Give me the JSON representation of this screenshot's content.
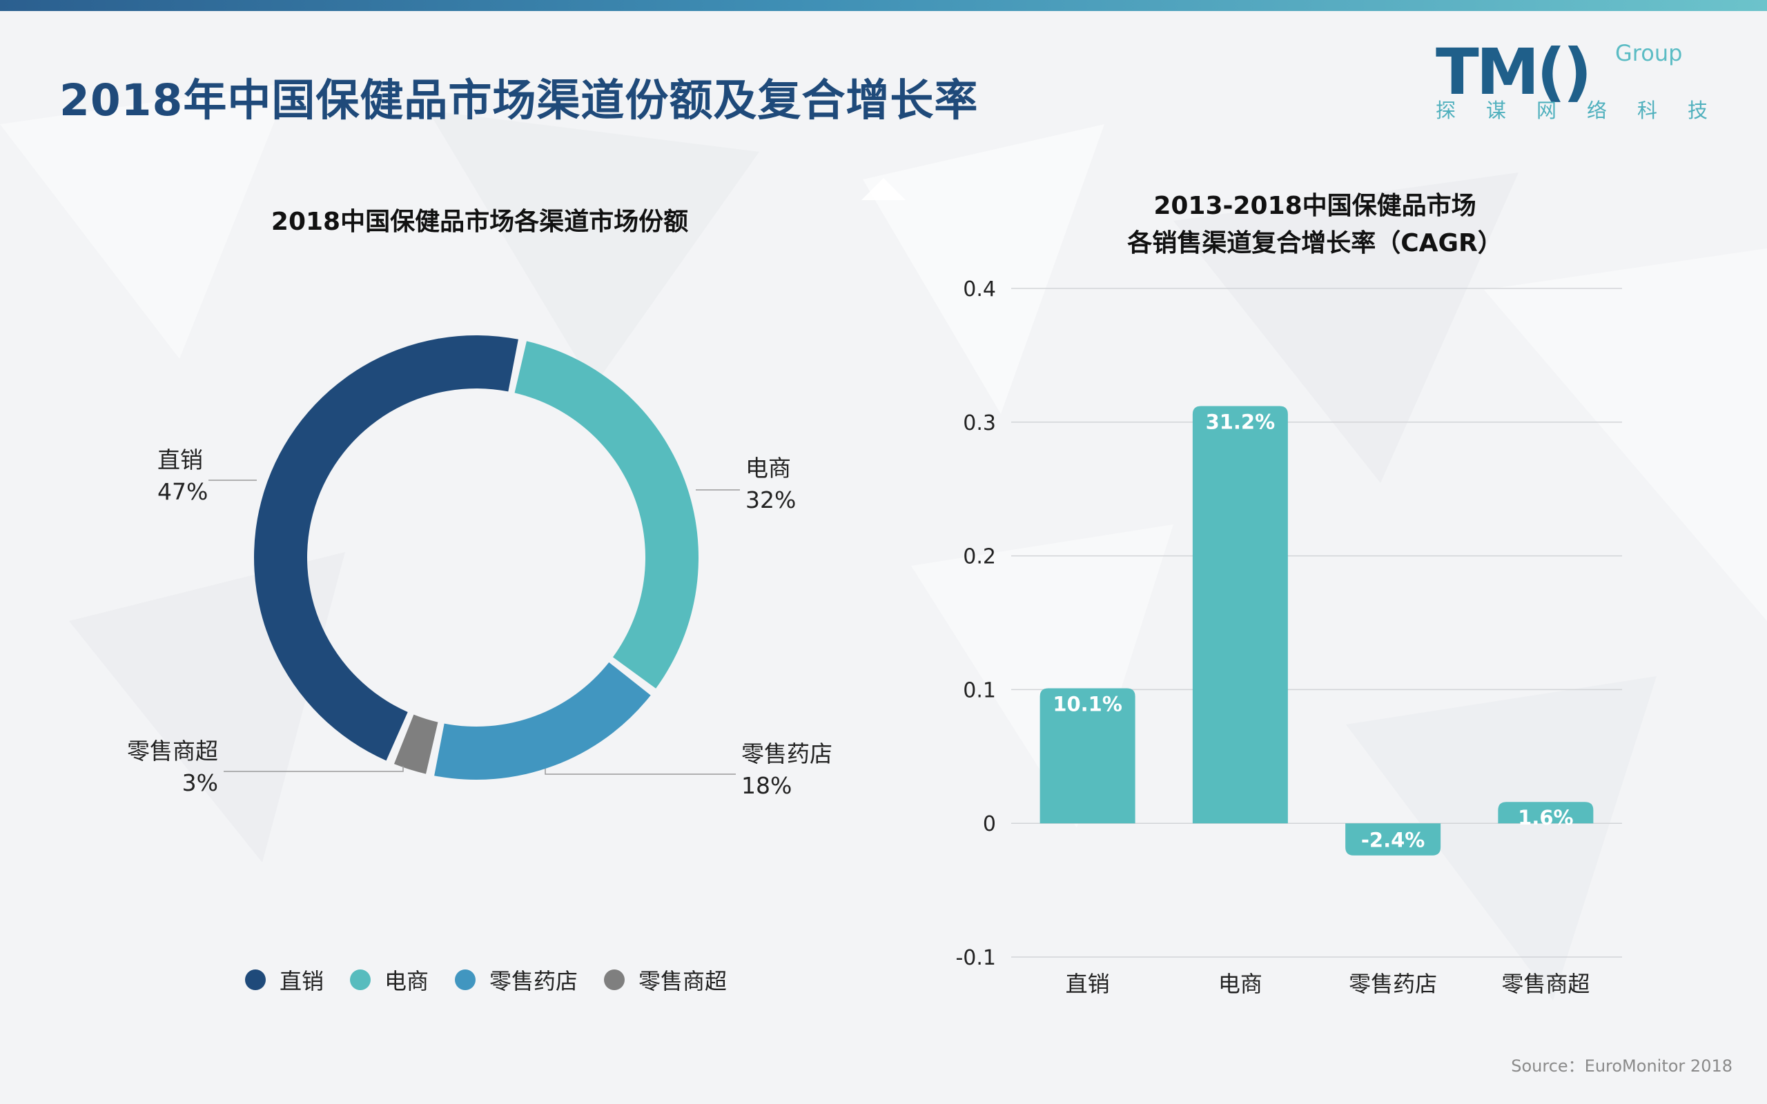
{
  "page_title": "2018年中国保健品市场渠道份额及复合增长率",
  "logo": {
    "mark": "TM()",
    "group": "Group",
    "subtitle": "探谋网络科技"
  },
  "left_chart_title": "2018中国保健品市场各渠道市场份额",
  "right_chart_title_line1": "2013-2018中国保健品市场",
  "right_chart_title_line2": "各销售渠道复合增长率（CAGR）",
  "source": "Source：EuroMonitor 2018",
  "colors": {
    "navy": "#1f4a7a",
    "teal": "#57bcbe",
    "blue": "#4196c0",
    "gray": "#7f7f7f"
  },
  "legend": [
    {
      "label": "直销",
      "color": "#1f4a7a"
    },
    {
      "label": "电商",
      "color": "#57bcbe"
    },
    {
      "label": "零售药店",
      "color": "#4196c0"
    },
    {
      "label": "零售商超",
      "color": "#7f7f7f"
    }
  ],
  "chart_data": [
    {
      "type": "pie",
      "variant": "donut",
      "title": "2018中国保健品市场各渠道市场份额",
      "categories": [
        "直销",
        "电商",
        "零售药店",
        "零售商超"
      ],
      "values": [
        47,
        32,
        18,
        3
      ],
      "labels": [
        {
          "name": "直销",
          "pct": "47%"
        },
        {
          "name": "电商",
          "pct": "32%"
        },
        {
          "name": "零售药店",
          "pct": "18%"
        },
        {
          "name": "零售商超",
          "pct": "3%"
        }
      ],
      "colors": [
        "#1f4a7a",
        "#57bcbe",
        "#4196c0",
        "#7f7f7f"
      ],
      "legend_position": "bottom"
    },
    {
      "type": "bar",
      "title": "2013-2018中国保健品市场 各销售渠道复合增长率（CAGR）",
      "categories": [
        "直销",
        "电商",
        "零售药店",
        "零售商超"
      ],
      "values": [
        0.101,
        0.312,
        -0.024,
        0.016
      ],
      "data_labels": [
        "10.1%",
        "31.2%",
        "-2.4%",
        "1.6%"
      ],
      "ylim": [
        -0.1,
        0.4
      ],
      "yticks": [
        0.4,
        0.3,
        0.2,
        0.1,
        0,
        -0.1
      ],
      "ytick_labels": [
        "0.4",
        "0.3",
        "0.2",
        "0.1",
        "0",
        "-0.1"
      ],
      "grid": true,
      "color": "#57bcbe"
    }
  ]
}
